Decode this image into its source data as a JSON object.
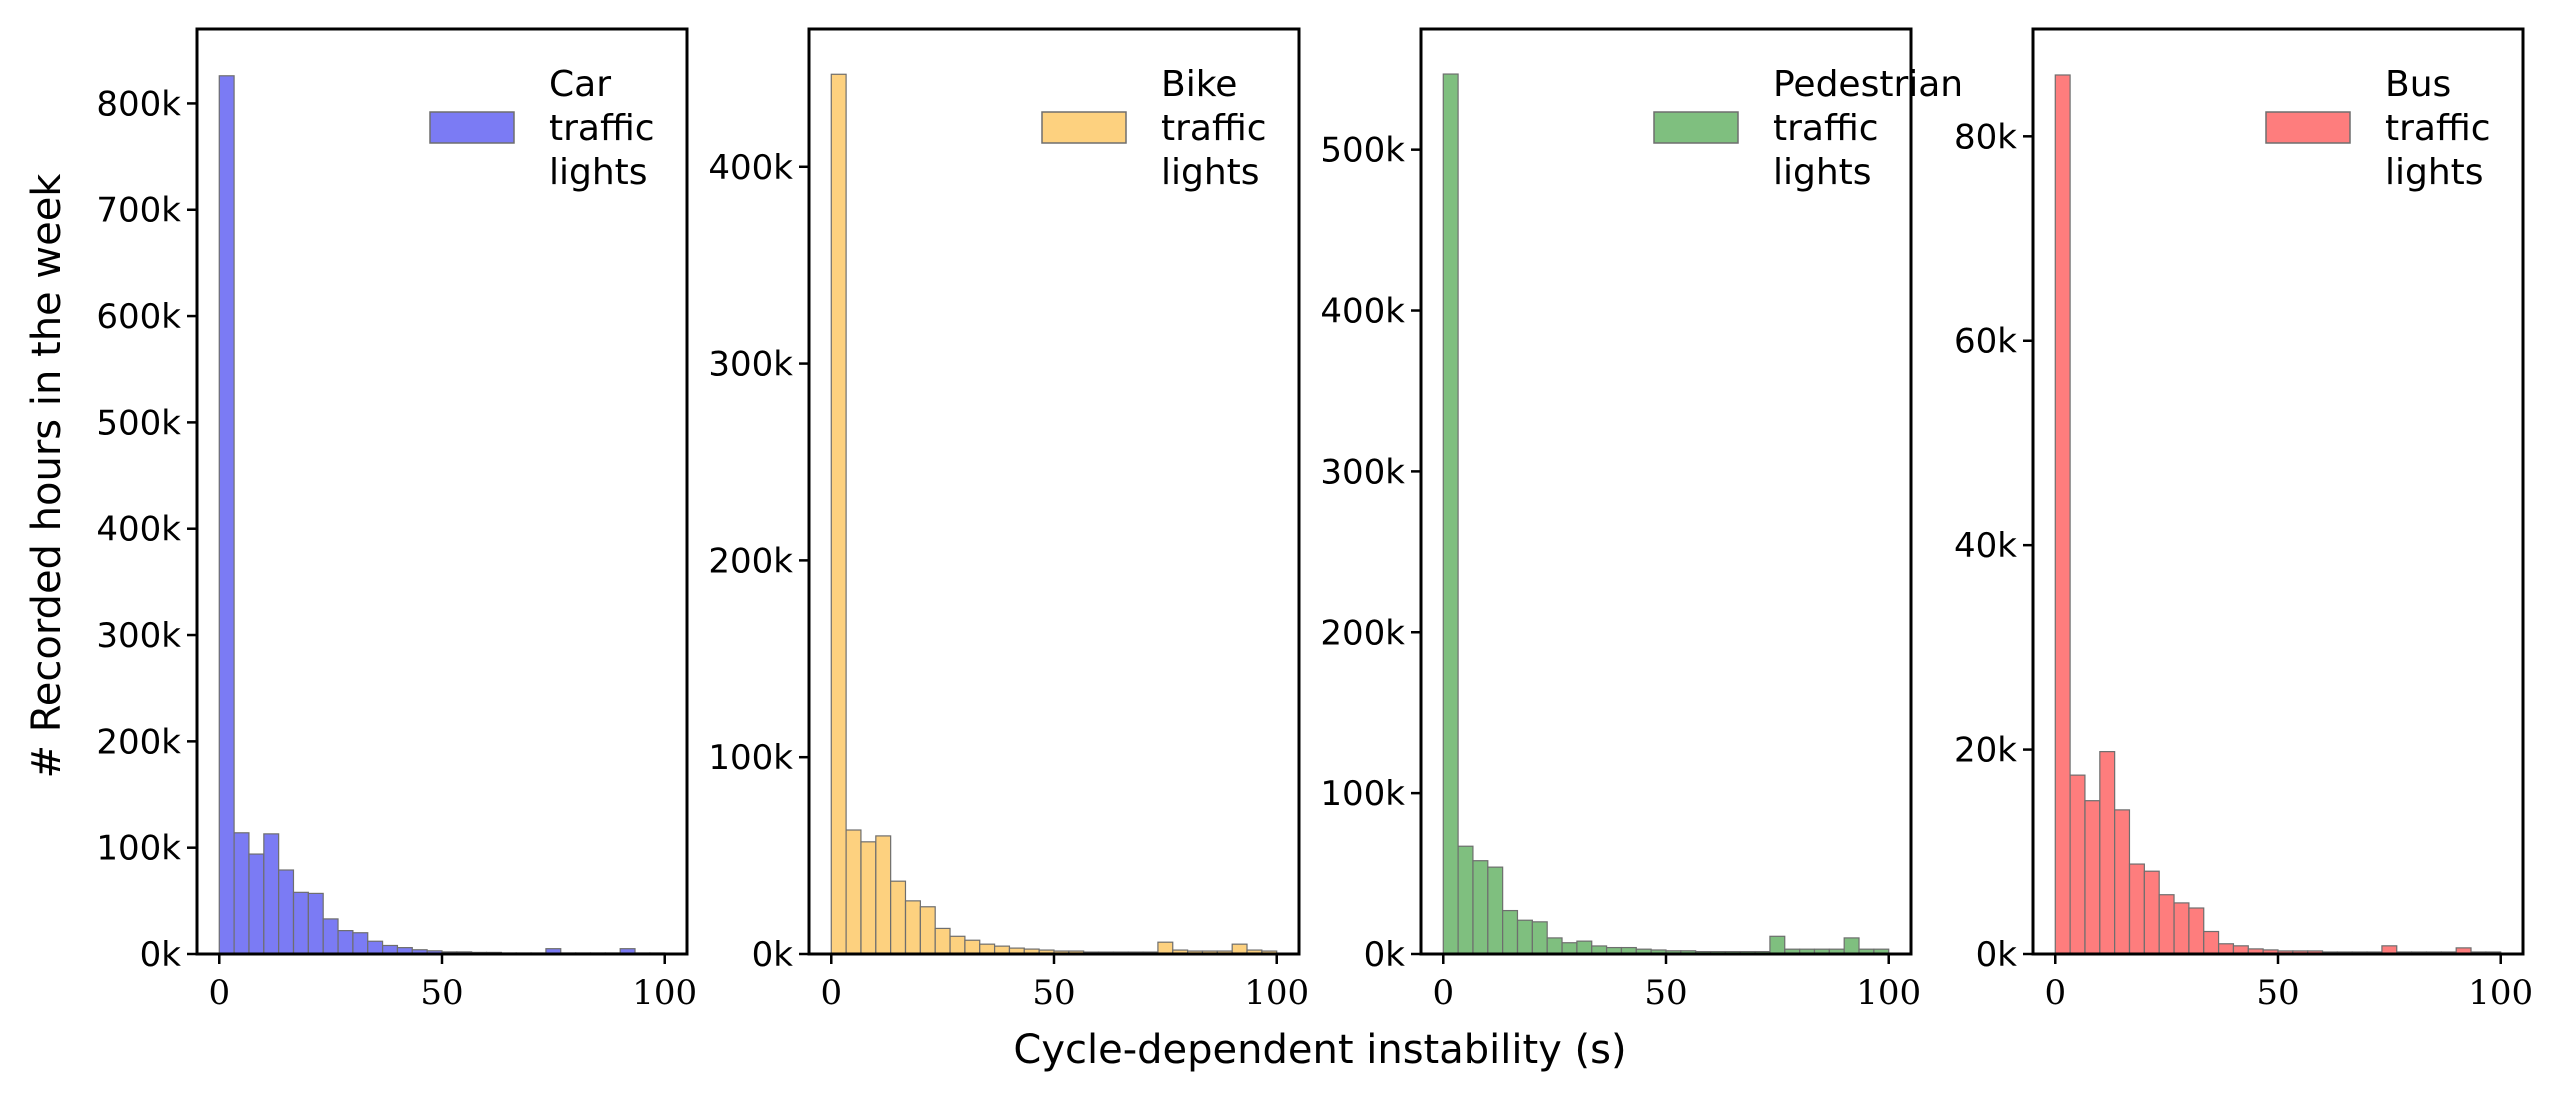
{
  "figure": {
    "xlabel": "Cycle-dependent instability (s)",
    "ylabel": "# Recorded hours in the week"
  },
  "chart_data": [
    {
      "type": "bar",
      "legend": [
        "Car",
        "traffic",
        "lights"
      ],
      "color": "#7b7bf4",
      "bin_width": 3.33,
      "x": [
        0,
        3.33,
        6.67,
        10,
        13.33,
        16.67,
        20,
        23.33,
        26.67,
        30,
        33.33,
        36.67,
        40,
        43.33,
        46.67,
        50,
        53.33,
        56.67,
        60,
        63.33,
        66.67,
        70,
        73.33,
        76.67,
        80,
        83.33,
        86.67,
        90,
        93.33,
        96.67
      ],
      "values": [
        826000,
        114000,
        94000,
        113000,
        79000,
        58000,
        57000,
        33000,
        22000,
        20000,
        12000,
        8000,
        6000,
        4000,
        3000,
        2000,
        2000,
        1500,
        1500,
        1000,
        1000,
        1000,
        5000,
        1000,
        1000,
        1000,
        1000,
        5000,
        1000,
        1000
      ],
      "xlim": [
        -5,
        105
      ],
      "ylim": [
        0,
        870000
      ],
      "xticks": [
        0,
        50,
        100
      ],
      "yticks": [
        0,
        100000,
        200000,
        300000,
        400000,
        500000,
        600000,
        700000,
        800000
      ],
      "ytick_labels": [
        "0k",
        "100k",
        "200k",
        "300k",
        "400k",
        "500k",
        "600k",
        "700k",
        "800k"
      ]
    },
    {
      "type": "bar",
      "legend": [
        "Bike",
        "traffic",
        "lights"
      ],
      "color": "#fdd17f",
      "bin_width": 3.33,
      "x": [
        0,
        3.33,
        6.67,
        10,
        13.33,
        16.67,
        20,
        23.33,
        26.67,
        30,
        33.33,
        36.67,
        40,
        43.33,
        46.67,
        50,
        53.33,
        56.67,
        60,
        63.33,
        66.67,
        70,
        73.33,
        76.67,
        80,
        83.33,
        86.67,
        90,
        93.33,
        96.67
      ],
      "values": [
        447000,
        63000,
        57000,
        60000,
        37000,
        27000,
        24000,
        13000,
        9000,
        7000,
        5000,
        4000,
        3000,
        2500,
        2000,
        1500,
        1500,
        1000,
        1000,
        1000,
        1000,
        1000,
        6000,
        2000,
        1500,
        1500,
        1500,
        5000,
        2000,
        1500
      ],
      "xlim": [
        -5,
        105
      ],
      "ylim": [
        0,
        470000
      ],
      "xticks": [
        0,
        50,
        100
      ],
      "yticks": [
        0,
        100000,
        200000,
        300000,
        400000
      ],
      "ytick_labels": [
        "0k",
        "100k",
        "200k",
        "300k",
        "400k"
      ]
    },
    {
      "type": "bar",
      "legend": [
        "Pedestrian",
        "traffic",
        "lights"
      ],
      "color": "#7fbf7f",
      "bin_width": 3.33,
      "x": [
        0,
        3.33,
        6.67,
        10,
        13.33,
        16.67,
        20,
        23.33,
        26.67,
        30,
        33.33,
        36.67,
        40,
        43.33,
        46.67,
        50,
        53.33,
        56.67,
        60,
        63.33,
        66.67,
        70,
        73.33,
        76.67,
        80,
        83.33,
        86.67,
        90,
        93.33,
        96.67
      ],
      "values": [
        547000,
        67000,
        58000,
        54000,
        27000,
        21000,
        20000,
        10000,
        7000,
        8000,
        5000,
        4000,
        4000,
        3000,
        2500,
        2000,
        2000,
        1500,
        1500,
        1500,
        1500,
        1500,
        11000,
        3000,
        3000,
        3000,
        3000,
        10000,
        3000,
        3000
      ],
      "xlim": [
        -5,
        105
      ],
      "ylim": [
        0,
        575000
      ],
      "xticks": [
        0,
        50,
        100
      ],
      "yticks": [
        0,
        100000,
        200000,
        300000,
        400000,
        500000
      ],
      "ytick_labels": [
        "0k",
        "100k",
        "200k",
        "300k",
        "400k",
        "500k"
      ]
    },
    {
      "type": "bar",
      "legend": [
        "Bus",
        "traffic",
        "lights"
      ],
      "color": "#fe7d7d",
      "bin_width": 3.33,
      "x": [
        0,
        3.33,
        6.67,
        10,
        13.33,
        16.67,
        20,
        23.33,
        26.67,
        30,
        33.33,
        36.67,
        40,
        43.33,
        46.67,
        50,
        53.33,
        56.67,
        60,
        63.33,
        66.67,
        70,
        73.33,
        76.67,
        80,
        83.33,
        86.67,
        90,
        93.33,
        96.67
      ],
      "values": [
        86000,
        17500,
        15000,
        19800,
        14100,
        8800,
        8100,
        5800,
        5000,
        4500,
        2200,
        1000,
        800,
        500,
        400,
        300,
        300,
        300,
        200,
        200,
        200,
        200,
        800,
        200,
        200,
        200,
        200,
        600,
        200,
        200
      ],
      "xlim": [
        -5,
        105
      ],
      "ylim": [
        0,
        90500
      ],
      "xticks": [
        0,
        50,
        100
      ],
      "yticks": [
        0,
        20000,
        40000,
        60000,
        80000
      ],
      "ytick_labels": [
        "0k",
        "20k",
        "40k",
        "60k",
        "80k"
      ]
    }
  ]
}
